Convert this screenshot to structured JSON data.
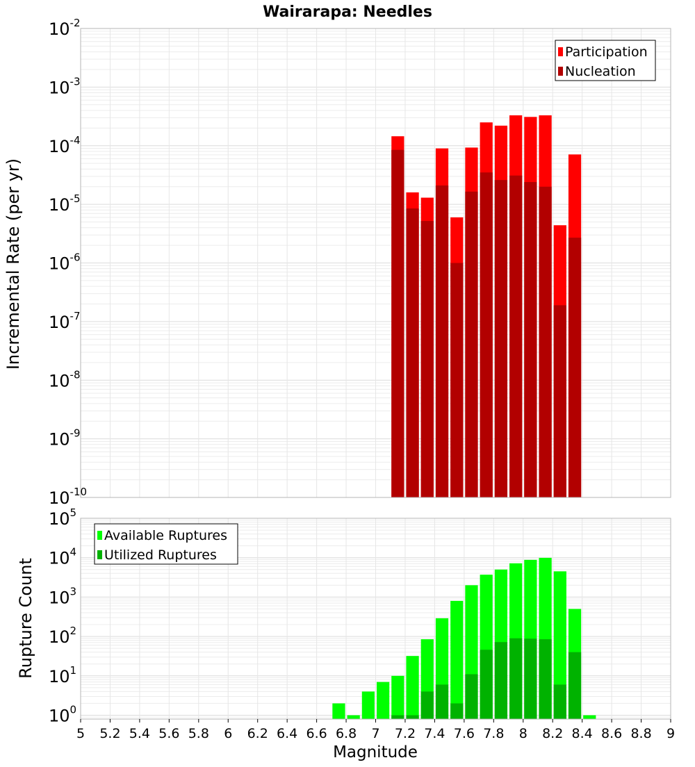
{
  "chart_data": [
    {
      "type": "bar",
      "title": "Wairarapa: Needles",
      "xlabel": "",
      "ylabel": "Incremental Rate (per yr)",
      "y_scale": "log",
      "ylim": [
        1e-10,
        0.01
      ],
      "xlim": [
        5,
        9
      ],
      "grid": true,
      "bar_width": 0.1,
      "legend_position": "top-right",
      "colors": {
        "Participation": "#ff0000",
        "Nucleation": "#b20000"
      },
      "x": [
        7.15,
        7.25,
        7.35,
        7.45,
        7.55,
        7.65,
        7.75,
        7.85,
        7.95,
        8.05,
        8.15,
        8.25,
        8.35
      ],
      "series": [
        {
          "name": "Participation",
          "values": [
            0.000145,
            1.6e-05,
            1.3e-05,
            9e-05,
            6e-06,
            9.3e-05,
            0.00025,
            0.00022,
            0.00033,
            0.00031,
            0.00033,
            4.4e-06,
            7.1e-05
          ]
        },
        {
          "name": "Nucleation",
          "values": [
            8.5e-05,
            8.5e-06,
            5.2e-06,
            2.1e-05,
            1e-06,
            1.65e-05,
            3.5e-05,
            2.6e-05,
            3.1e-05,
            2.4e-05,
            2e-05,
            1.9e-07,
            2.7e-06
          ]
        }
      ],
      "y_ticks": [
        {
          "base": "10",
          "exp": "-2"
        },
        {
          "base": "10",
          "exp": "-3"
        },
        {
          "base": "10",
          "exp": "-4"
        },
        {
          "base": "10",
          "exp": "-5"
        },
        {
          "base": "10",
          "exp": "-6"
        },
        {
          "base": "10",
          "exp": "-7"
        },
        {
          "base": "10",
          "exp": "-8"
        },
        {
          "base": "10",
          "exp": "-9"
        },
        {
          "base": "10",
          "exp": "-10"
        }
      ]
    },
    {
      "type": "bar",
      "title": "",
      "xlabel": "Magnitude",
      "ylabel": "Rupture Count",
      "y_scale": "log",
      "ylim": [
        0.8,
        100000.0
      ],
      "xlim": [
        5,
        9
      ],
      "grid": true,
      "bar_width": 0.1,
      "legend_position": "top-left",
      "colors": {
        "Available Ruptures": "#00ff00",
        "Utilized Ruptures": "#00b200"
      },
      "x": [
        6.75,
        6.85,
        6.95,
        7.05,
        7.15,
        7.25,
        7.35,
        7.45,
        7.55,
        7.65,
        7.75,
        7.85,
        7.95,
        8.05,
        8.15,
        8.25,
        8.35,
        8.45
      ],
      "series": [
        {
          "name": "Available Ruptures",
          "values": [
            2,
            1,
            4,
            7,
            10,
            32,
            85,
            290,
            800,
            2000,
            3700,
            5000,
            7200,
            8800,
            9900,
            4500,
            500,
            1
          ]
        },
        {
          "name": "Utilized Ruptures",
          "values": [
            0,
            0,
            0,
            0,
            1,
            1,
            4,
            6,
            2,
            11,
            46,
            72,
            90,
            88,
            85,
            6,
            40,
            0
          ]
        }
      ],
      "y_ticks": [
        {
          "base": "10",
          "exp": "5"
        },
        {
          "base": "10",
          "exp": "4"
        },
        {
          "base": "10",
          "exp": "3"
        },
        {
          "base": "10",
          "exp": "2"
        },
        {
          "base": "10",
          "exp": "1"
        },
        {
          "base": "10",
          "exp": "0"
        }
      ],
      "x_ticks": [
        "5",
        "5.2",
        "5.4",
        "5.6",
        "5.8",
        "6",
        "6.2",
        "6.4",
        "6.6",
        "6.8",
        "7",
        "7.2",
        "7.4",
        "7.6",
        "7.8",
        "8",
        "8.2",
        "8.4",
        "8.6",
        "8.8",
        "9"
      ]
    }
  ]
}
